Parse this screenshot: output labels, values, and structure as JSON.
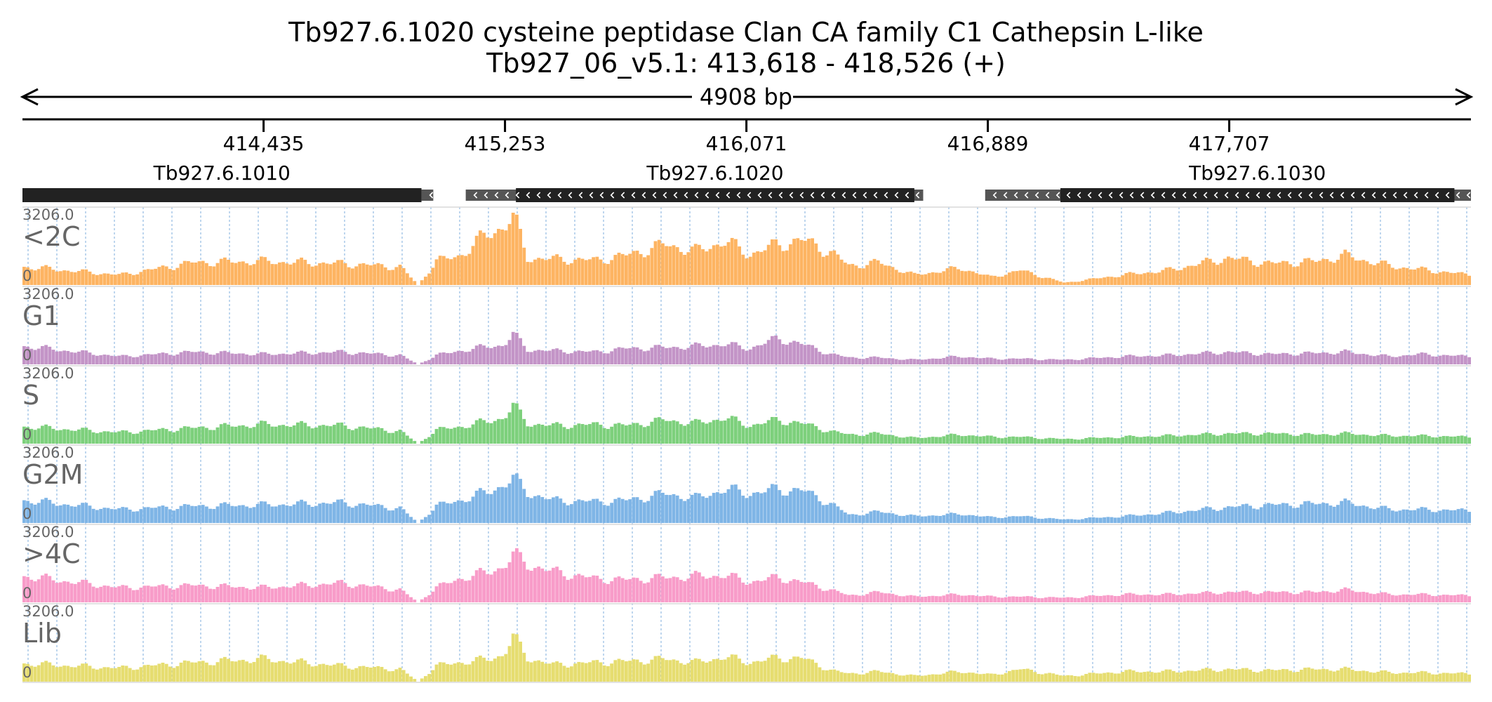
{
  "header": {
    "title": "Tb927.6.1020  cysteine peptidase  Clan CA  family C1  Cathepsin L-like",
    "region": "Tb927_06_v5.1: 413,618 - 418,526 (+)"
  },
  "chart_data": {
    "type": "bar",
    "start": 413618,
    "end": 418526,
    "span_label": "4908 bp",
    "ticks": [
      {
        "pos": 414435,
        "label": "414,435"
      },
      {
        "pos": 415253,
        "label": "415,253"
      },
      {
        "pos": 416071,
        "label": "416,071"
      },
      {
        "pos": 416889,
        "label": "416,889"
      },
      {
        "pos": 417707,
        "label": "417,707"
      }
    ],
    "genes": [
      {
        "name": "Tb927.6.1010",
        "cds": [
          413618,
          414970
        ],
        "utr": [
          414970,
          415010
        ],
        "strand": "-"
      },
      {
        "name": "Tb927.6.1020",
        "cds": [
          415290,
          416640
        ],
        "utr": [
          415120,
          416670
        ],
        "strand": "-"
      },
      {
        "name": "Tb927.6.1030",
        "cds": [
          417135,
          418470
        ],
        "utr": [
          416880,
          418526
        ],
        "strand": "-"
      }
    ],
    "tracks": [
      {
        "name": "<2C",
        "color": "#fdb462",
        "max": "3206.0",
        "min": "0"
      },
      {
        "name": "G1",
        "color": "#c394c7",
        "max": "3206.0",
        "min": "0"
      },
      {
        "name": "S",
        "color": "#7dd07c",
        "max": "3206.0",
        "min": "0"
      },
      {
        "name": "G2M",
        "color": "#7fb5e6",
        "max": "3206.0",
        "min": "0"
      },
      {
        "name": ">4C",
        "color": "#f89cc9",
        "max": "3206.0",
        "min": "0"
      },
      {
        "name": "Lib",
        "color": "#e6dd70",
        "max": "3206.0",
        "min": "0"
      }
    ],
    "x": [
      413630,
      413950,
      414200,
      414430,
      414700,
      414900,
      414960,
      415020,
      415100,
      415200,
      415250,
      415280,
      415330,
      415420,
      415560,
      415660,
      415800,
      415900,
      416000,
      416080,
      416180,
      416260,
      416360,
      416420,
      416520,
      416640,
      416800,
      416900,
      417000,
      417150,
      417350,
      417500,
      417700,
      417850,
      418000,
      418100,
      418250,
      418350,
      418526
    ],
    "series": [
      {
        "name": "<2C",
        "values": [
          800,
          450,
          1000,
          1050,
          950,
          800,
          0,
          1050,
          1300,
          2300,
          2600,
          3100,
          1200,
          1150,
          1100,
          1300,
          1800,
          1500,
          1950,
          1350,
          1800,
          2000,
          1450,
          850,
          1000,
          450,
          750,
          350,
          650,
          100,
          450,
          650,
          1200,
          950,
          1050,
          1300,
          850,
          700,
          450
        ]
      },
      {
        "name": "G1",
        "values": [
          800,
          350,
          550,
          450,
          550,
          400,
          0,
          400,
          600,
          800,
          850,
          1350,
          650,
          600,
          550,
          700,
          750,
          800,
          900,
          700,
          1150,
          900,
          450,
          300,
          300,
          200,
          350,
          250,
          250,
          200,
          350,
          400,
          550,
          450,
          500,
          550,
          350,
          450,
          350
        ]
      },
      {
        "name": "S",
        "values": [
          750,
          500,
          700,
          850,
          800,
          550,
          0,
          600,
          750,
          1000,
          1150,
          1700,
          900,
          800,
          850,
          800,
          1050,
          900,
          1150,
          800,
          1050,
          900,
          550,
          400,
          450,
          250,
          400,
          300,
          300,
          200,
          300,
          350,
          450,
          450,
          400,
          450,
          350,
          350,
          300
        ]
      },
      {
        "name": "G2M",
        "values": [
          1000,
          600,
          750,
          800,
          900,
          650,
          0,
          750,
          1000,
          1400,
          1700,
          2000,
          1350,
          1000,
          950,
          1000,
          1300,
          1100,
          1500,
          1300,
          1500,
          1450,
          850,
          350,
          500,
          300,
          400,
          250,
          300,
          150,
          300,
          450,
          700,
          800,
          850,
          900,
          600,
          600,
          550
        ]
      },
      {
        "name": ">4C",
        "values": [
          1150,
          650,
          750,
          650,
          850,
          550,
          0,
          650,
          1050,
          1350,
          1600,
          2100,
          1700,
          1350,
          1050,
          1000,
          1100,
          1150,
          1200,
          900,
          1100,
          900,
          550,
          300,
          450,
          250,
          350,
          250,
          250,
          200,
          350,
          350,
          450,
          450,
          450,
          550,
          350,
          350,
          300
        ]
      },
      {
        "name": "Lib",
        "values": [
          800,
          600,
          850,
          1000,
          700,
          550,
          0,
          700,
          850,
          1000,
          1200,
          2000,
          1050,
          750,
          850,
          900,
          1000,
          850,
          1100,
          850,
          1050,
          1050,
          500,
          350,
          450,
          250,
          450,
          300,
          550,
          250,
          450,
          450,
          550,
          500,
          550,
          550,
          400,
          400,
          350
        ]
      }
    ]
  }
}
